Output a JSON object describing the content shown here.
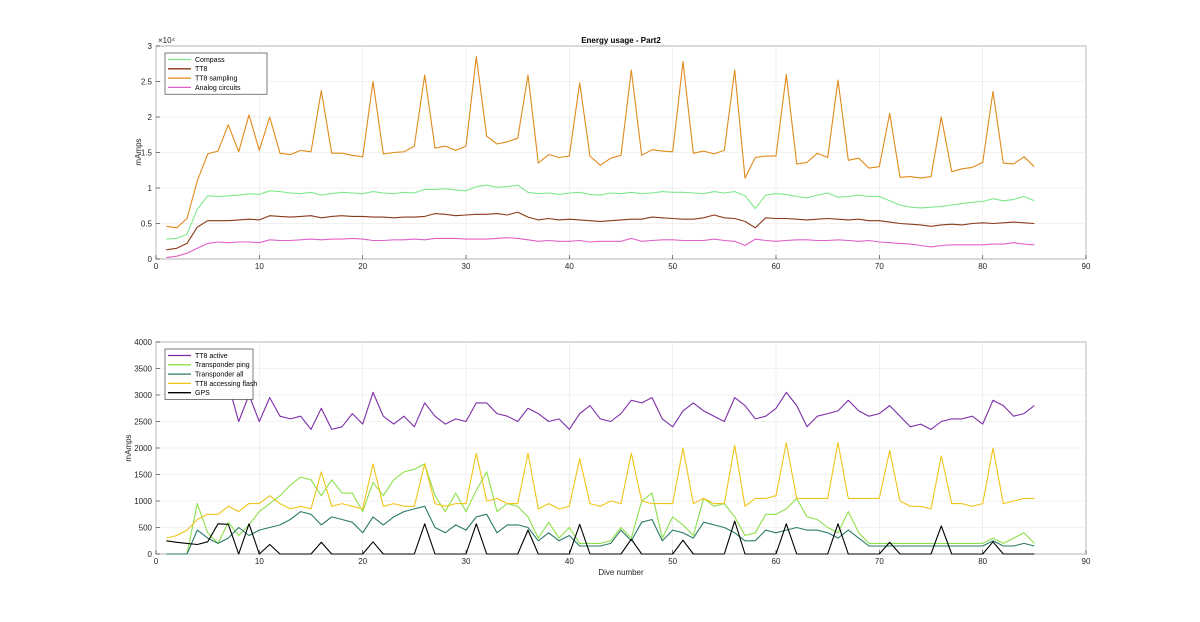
{
  "chart_data": [
    {
      "type": "line",
      "title": "Energy usage - Part2",
      "xlabel": "",
      "ylabel": "mAmps",
      "xlim": [
        0,
        90
      ],
      "ylim": [
        0,
        30000
      ],
      "xticks": [
        0,
        10,
        20,
        30,
        40,
        50,
        60,
        70,
        80,
        90
      ],
      "yticks": [
        0,
        0.5,
        1,
        1.5,
        2,
        2.5,
        3
      ],
      "y_exponent_label": "×10⁴",
      "legend_position": "top-left",
      "x": [
        1,
        2,
        3,
        4,
        5,
        6,
        7,
        8,
        9,
        10,
        11,
        12,
        13,
        14,
        15,
        16,
        17,
        18,
        19,
        20,
        21,
        22,
        23,
        24,
        25,
        26,
        27,
        28,
        29,
        30,
        31,
        32,
        33,
        34,
        35,
        36,
        37,
        38,
        39,
        40,
        41,
        42,
        43,
        44,
        45,
        46,
        47,
        48,
        49,
        50,
        51,
        52,
        53,
        54,
        55,
        56,
        57,
        58,
        59,
        60,
        61,
        62,
        63,
        64,
        65,
        66,
        67,
        68,
        69,
        70,
        71,
        72,
        73,
        74,
        75,
        76,
        77,
        78,
        79,
        80,
        81,
        82,
        83,
        84,
        85
      ],
      "series": [
        {
          "name": "Compass",
          "color": "#7fe88a",
          "values": [
            2800,
            2900,
            3500,
            7000,
            8900,
            8800,
            8900,
            9000,
            9200,
            9100,
            9600,
            9500,
            9300,
            9200,
            9400,
            9000,
            9200,
            9400,
            9300,
            9200,
            9500,
            9300,
            9200,
            9400,
            9300,
            9800,
            9800,
            9900,
            9700,
            9600,
            10200,
            10400,
            10100,
            10200,
            10400,
            9400,
            9200,
            9300,
            9100,
            9300,
            9400,
            9100,
            9000,
            9300,
            9200,
            9400,
            9200,
            9300,
            9500,
            9400,
            9400,
            9300,
            9200,
            9500,
            9300,
            9500,
            8900,
            7100,
            9000,
            9200,
            9100,
            8800,
            8600,
            9000,
            9300,
            8700,
            8800,
            9000,
            8800,
            8800,
            8200,
            7600,
            7300,
            7200,
            7300,
            7400,
            7600,
            7800,
            8000,
            8100,
            8500,
            8200,
            8400,
            8800,
            8200
          ]
        },
        {
          "name": "TT8",
          "color": "#8b3a1a",
          "values": [
            1300,
            1500,
            2200,
            4500,
            5400,
            5400,
            5400,
            5500,
            5600,
            5500,
            6100,
            6000,
            5900,
            6000,
            6100,
            5800,
            6000,
            6100,
            6000,
            6000,
            5900,
            5900,
            5800,
            5900,
            5900,
            6000,
            6400,
            6300,
            6100,
            6200,
            6300,
            6300,
            6400,
            6200,
            6600,
            5900,
            5500,
            5700,
            5500,
            5600,
            5500,
            5400,
            5300,
            5400,
            5500,
            5600,
            5600,
            5900,
            5800,
            5700,
            5600,
            5600,
            5800,
            6200,
            5800,
            5700,
            5300,
            4400,
            5800,
            5700,
            5700,
            5600,
            5500,
            5600,
            5700,
            5600,
            5500,
            5600,
            5400,
            5400,
            5200,
            5000,
            4900,
            4800,
            4600,
            4800,
            4900,
            4800,
            5000,
            5100,
            5000,
            5100,
            5200,
            5100,
            5000
          ]
        },
        {
          "name": "TT8 sampling",
          "color": "#e08a1a",
          "values": [
            4600,
            4400,
            5700,
            11000,
            14800,
            15200,
            18900,
            15100,
            20300,
            15300,
            20000,
            14900,
            14700,
            15300,
            15100,
            23700,
            14900,
            14900,
            14600,
            14400,
            25000,
            14800,
            15000,
            15100,
            15900,
            25900,
            15600,
            15900,
            15300,
            15900,
            28500,
            17300,
            16200,
            16500,
            17000,
            25900,
            13500,
            14700,
            14300,
            14500,
            24800,
            14500,
            13200,
            14200,
            14600,
            26600,
            14600,
            15400,
            15200,
            15100,
            27800,
            14900,
            15200,
            14800,
            15300,
            26600,
            11400,
            14300,
            14500,
            14500,
            26000,
            13400,
            13600,
            14900,
            14300,
            25200,
            13900,
            14200,
            12800,
            13000,
            20500,
            11500,
            11600,
            11400,
            11600,
            20000,
            12300,
            12700,
            12900,
            13600,
            23600,
            13500,
            13400,
            14400,
            13000
          ]
        },
        {
          "name": "Analog circuits",
          "color": "#e060c8",
          "values": [
            200,
            400,
            800,
            1500,
            2200,
            2400,
            2300,
            2400,
            2400,
            2300,
            2700,
            2600,
            2600,
            2700,
            2800,
            2700,
            2800,
            2800,
            2900,
            2800,
            2600,
            2600,
            2700,
            2700,
            2800,
            2700,
            2900,
            2900,
            2900,
            2800,
            2800,
            2800,
            2900,
            3000,
            2900,
            2700,
            2500,
            2600,
            2500,
            2500,
            2600,
            2400,
            2500,
            2500,
            2500,
            2900,
            2500,
            2600,
            2700,
            2700,
            2600,
            2600,
            2600,
            2800,
            2600,
            2500,
            1900,
            2800,
            2600,
            2500,
            2600,
            2700,
            2700,
            2600,
            2600,
            2700,
            2600,
            2500,
            2600,
            2400,
            2300,
            2200,
            2100,
            1900,
            1700,
            1900,
            2000,
            2000,
            2000,
            2000,
            2100,
            2100,
            2300,
            2100,
            2000
          ]
        }
      ]
    },
    {
      "type": "line",
      "title": "",
      "xlabel": "Dive number",
      "ylabel": "mAmps",
      "xlim": [
        0,
        90
      ],
      "ylim": [
        0,
        4000
      ],
      "xticks": [
        0,
        10,
        20,
        30,
        40,
        50,
        60,
        70,
        80,
        90
      ],
      "yticks": [
        0,
        500,
        1000,
        1500,
        2000,
        2500,
        3000,
        3500,
        4000
      ],
      "legend_position": "top-left",
      "x": [
        1,
        2,
        3,
        4,
        5,
        6,
        7,
        8,
        9,
        10,
        11,
        12,
        13,
        14,
        15,
        16,
        17,
        18,
        19,
        20,
        21,
        22,
        23,
        24,
        25,
        26,
        27,
        28,
        29,
        30,
        31,
        32,
        33,
        34,
        35,
        36,
        37,
        38,
        39,
        40,
        41,
        42,
        43,
        44,
        45,
        46,
        47,
        48,
        49,
        50,
        51,
        52,
        53,
        54,
        55,
        56,
        57,
        58,
        59,
        60,
        61,
        62,
        63,
        64,
        65,
        66,
        67,
        68,
        69,
        70,
        71,
        72,
        73,
        74,
        75,
        76,
        77,
        78,
        79,
        80,
        81,
        82,
        83,
        84,
        85
      ],
      "series": [
        {
          "name": "TT8 active",
          "color": "#7d2ea8",
          "values": [
            null,
            null,
            null,
            null,
            null,
            null,
            3200,
            2500,
            3000,
            2500,
            2950,
            2600,
            2550,
            2600,
            2350,
            2750,
            2350,
            2400,
            2650,
            2450,
            3050,
            2600,
            2450,
            2600,
            2400,
            2850,
            2600,
            2450,
            2550,
            2500,
            2850,
            2850,
            2650,
            2600,
            2500,
            2750,
            2650,
            2500,
            2550,
            2350,
            2650,
            2800,
            2550,
            2500,
            2650,
            2900,
            2850,
            2950,
            2550,
            2400,
            2700,
            2850,
            2700,
            2600,
            2500,
            2950,
            2800,
            2550,
            2600,
            2750,
            3050,
            2800,
            2400,
            2600,
            2650,
            2700,
            2900,
            2700,
            2600,
            2650,
            2800,
            2600,
            2400,
            2450,
            2350,
            2500,
            2550,
            2550,
            2600,
            2450,
            2900,
            2800,
            2600,
            2650,
            2800
          ]
        },
        {
          "name": "Transponder ping",
          "color": "#8ee04a",
          "values": [
            0,
            0,
            0,
            950,
            400,
            200,
            600,
            350,
            550,
            800,
            950,
            1100,
            1300,
            1450,
            1400,
            1100,
            1400,
            1150,
            1150,
            800,
            1350,
            1100,
            1400,
            1550,
            1600,
            1700,
            1100,
            800,
            1150,
            800,
            1200,
            1550,
            800,
            950,
            900,
            700,
            300,
            600,
            300,
            500,
            200,
            200,
            200,
            250,
            500,
            300,
            1000,
            1150,
            300,
            700,
            550,
            350,
            1050,
            900,
            950,
            700,
            350,
            400,
            750,
            750,
            850,
            1050,
            700,
            650,
            500,
            400,
            800,
            400,
            200,
            200,
            200,
            200,
            200,
            200,
            200,
            200,
            200,
            200,
            200,
            200,
            300,
            200,
            300,
            400,
            200
          ]
        },
        {
          "name": "Transponder all",
          "color": "#2a7a6a",
          "values": [
            0,
            0,
            0,
            450,
            300,
            200,
            300,
            500,
            350,
            450,
            500,
            550,
            650,
            800,
            750,
            550,
            700,
            650,
            600,
            400,
            700,
            550,
            700,
            800,
            850,
            900,
            500,
            400,
            550,
            450,
            700,
            750,
            400,
            550,
            550,
            500,
            250,
            400,
            250,
            350,
            150,
            150,
            150,
            200,
            450,
            250,
            600,
            650,
            250,
            450,
            400,
            300,
            600,
            550,
            500,
            400,
            250,
            250,
            450,
            400,
            450,
            500,
            450,
            450,
            400,
            300,
            450,
            300,
            150,
            150,
            150,
            150,
            150,
            150,
            150,
            150,
            150,
            150,
            150,
            150,
            250,
            150,
            150,
            200,
            150
          ]
        },
        {
          "name": "TT8 accessing flash",
          "color": "#f0c419",
          "values": [
            300,
            350,
            450,
            650,
            750,
            750,
            900,
            800,
            950,
            950,
            1100,
            950,
            850,
            900,
            850,
            1550,
            900,
            950,
            900,
            850,
            1700,
            900,
            950,
            900,
            900,
            1700,
            950,
            900,
            950,
            950,
            1900,
            1000,
            1050,
            950,
            950,
            1900,
            850,
            950,
            850,
            900,
            1800,
            950,
            900,
            1000,
            950,
            1900,
            1000,
            950,
            950,
            950,
            2000,
            950,
            1050,
            950,
            950,
            2050,
            900,
            1050,
            1050,
            1100,
            2100,
            1050,
            1050,
            1050,
            1050,
            2100,
            1050,
            1050,
            1050,
            1050,
            1950,
            1000,
            900,
            900,
            850,
            1850,
            950,
            950,
            900,
            950,
            2000,
            950,
            1000,
            1050,
            1050
          ]
        },
        {
          "name": "GPS",
          "color": "#000000",
          "values": [
            250,
            220,
            200,
            180,
            230,
            570,
            560,
            0,
            570,
            0,
            180,
            0,
            0,
            0,
            0,
            220,
            0,
            0,
            0,
            0,
            230,
            0,
            0,
            0,
            0,
            570,
            0,
            0,
            0,
            0,
            570,
            0,
            0,
            0,
            0,
            450,
            0,
            0,
            0,
            0,
            560,
            0,
            0,
            0,
            0,
            280,
            0,
            0,
            0,
            0,
            260,
            0,
            0,
            0,
            0,
            620,
            0,
            0,
            0,
            0,
            570,
            0,
            0,
            0,
            0,
            570,
            0,
            0,
            0,
            0,
            220,
            0,
            0,
            0,
            0,
            530,
            0,
            0,
            0,
            0,
            230,
            0,
            0,
            0,
            0
          ]
        }
      ]
    }
  ]
}
